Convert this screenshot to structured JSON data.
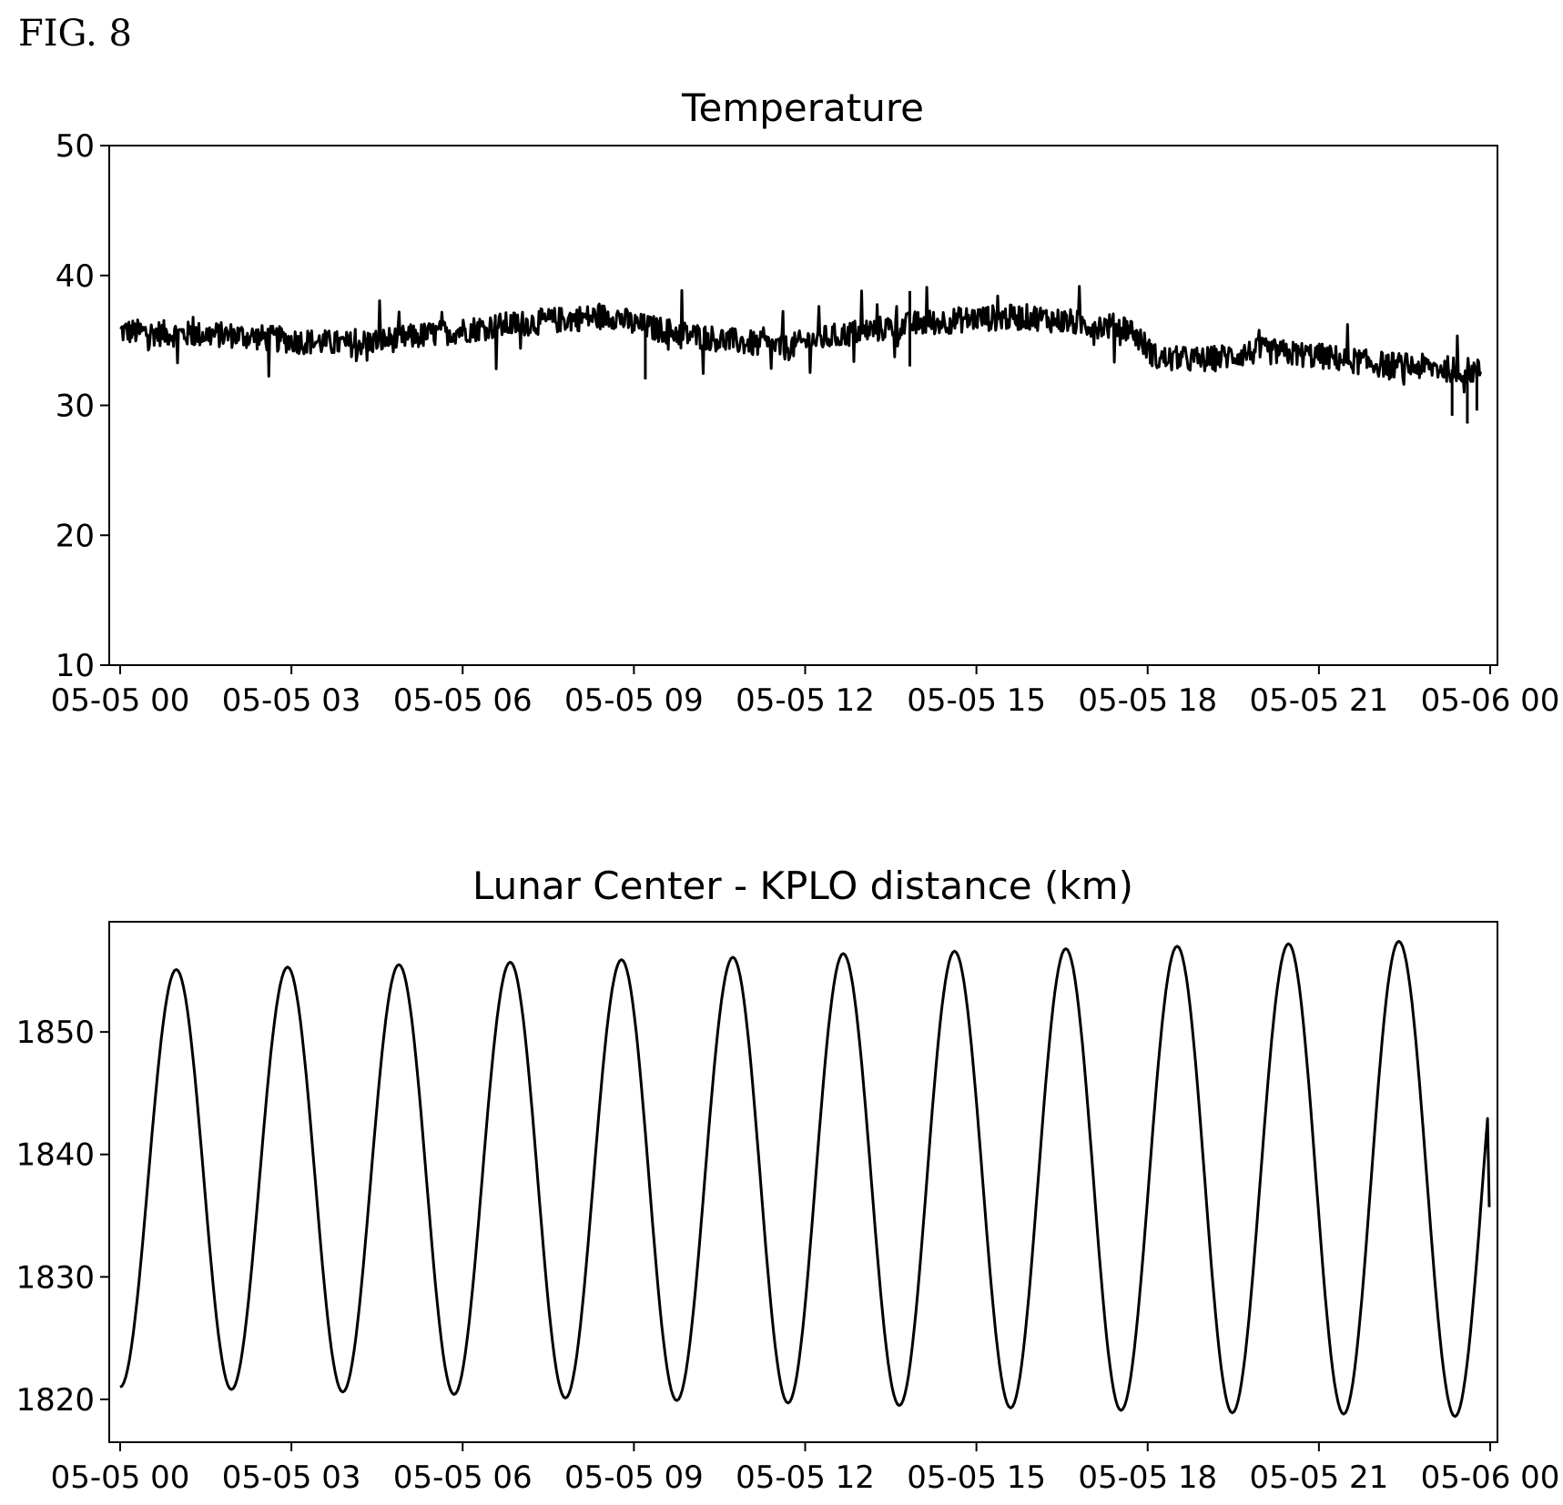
{
  "figure": {
    "label": "FIG. 8"
  },
  "chart_data": [
    {
      "type": "line",
      "title": "Temperature",
      "xlabel": "",
      "ylabel": "",
      "xlim": [
        "05-05 00",
        "05-06 00"
      ],
      "ylim": [
        10,
        50
      ],
      "x_ticks": [
        "05-05 00",
        "05-05 03",
        "05-05 06",
        "05-05 09",
        "05-05 12",
        "05-05 15",
        "05-05 18",
        "05-05 21",
        "05-06 00"
      ],
      "y_ticks": [
        10,
        20,
        30,
        40,
        50
      ],
      "grid": false,
      "legend": "none",
      "series": [
        {
          "color": "#000000",
          "x": [
            "05-05 00:00",
            "05-05 01:00",
            "05-05 02:00",
            "05-05 03:00",
            "05-05 04:00",
            "05-05 05:00",
            "05-05 06:00",
            "05-05 07:00",
            "05-05 08:00",
            "05-05 08:40",
            "05-05 09:00",
            "05-05 10:00",
            "05-05 11:00",
            "05-05 11:40",
            "05-05 12:00",
            "05-05 13:00",
            "05-05 14:00",
            "05-05 15:00",
            "05-05 16:00",
            "05-05 17:00",
            "05-05 17:40",
            "05-05 18:10",
            "05-05 19:00",
            "05-05 20:00",
            "05-05 21:00",
            "05-05 22:00",
            "05-05 23:00",
            "05-05 23:50"
          ],
          "values": [
            35.7,
            35.5,
            35.4,
            35.0,
            34.7,
            35.2,
            35.8,
            36.3,
            36.7,
            36.9,
            36.2,
            35.4,
            34.8,
            34.4,
            34.9,
            35.7,
            36.3,
            36.7,
            36.8,
            36.2,
            36.0,
            33.6,
            33.5,
            34.2,
            33.8,
            33.2,
            32.9,
            32.6
          ],
          "noise_band": 1.0,
          "spikes": [
            {
              "x": "05-05 23:20",
              "y": 29.2
            },
            {
              "x": "05-05 23:36",
              "y": 28.6
            },
            {
              "x": "05-05 23:46",
              "y": 29.6
            },
            {
              "x": "05-05 13:50",
              "y": 38.8
            },
            {
              "x": "05-05 09:12",
              "y": 32.0
            },
            {
              "x": "05-05 13:50",
              "y": 33.0
            }
          ]
        }
      ]
    },
    {
      "type": "line",
      "title": "Lunar Center - KPLO distance (km)",
      "xlabel": "",
      "ylabel": "",
      "xlim": [
        "05-05 00",
        "05-06 00"
      ],
      "ylim": [
        1816.5,
        1859
      ],
      "x_ticks": [
        "05-05 00",
        "05-05 03",
        "05-05 06",
        "05-05 09",
        "05-05 12",
        "05-05 15",
        "05-05 18",
        "05-05 21",
        "05-06 00"
      ],
      "y_ticks": [
        1820,
        1830,
        1840,
        1850
      ],
      "grid": false,
      "legend": "none",
      "series": [
        {
          "color": "#000000",
          "peak_times": [
            "05-05 00:59",
            "05-05 02:56",
            "05-05 04:53",
            "05-05 06:50",
            "05-05 08:47",
            "05-05 10:44",
            "05-05 12:40",
            "05-05 14:37",
            "05-05 16:34",
            "05-05 18:31",
            "05-05 20:28",
            "05-05 22:24"
          ],
          "peak_values": [
            1855.1,
            1855.3,
            1855.5,
            1855.7,
            1855.9,
            1856.1,
            1856.4,
            1856.6,
            1856.8,
            1857.0,
            1857.2,
            1857.4
          ],
          "trough_times": [
            "05-05 00:00",
            "05-05 01:57",
            "05-05 03:54",
            "05-05 05:51",
            "05-05 07:48",
            "05-05 09:45",
            "05-05 11:42",
            "05-05 13:39",
            "05-05 15:36",
            "05-05 17:32",
            "05-05 19:29",
            "05-05 21:26",
            "05-05 23:23"
          ],
          "trough_values": [
            1821.0,
            1820.8,
            1820.6,
            1820.4,
            1820.1,
            1819.9,
            1819.7,
            1819.5,
            1819.3,
            1819.1,
            1818.9,
            1818.8,
            1818.6
          ],
          "end": {
            "x": "05-05 23:59",
            "y": 1835.7
          }
        }
      ]
    }
  ]
}
